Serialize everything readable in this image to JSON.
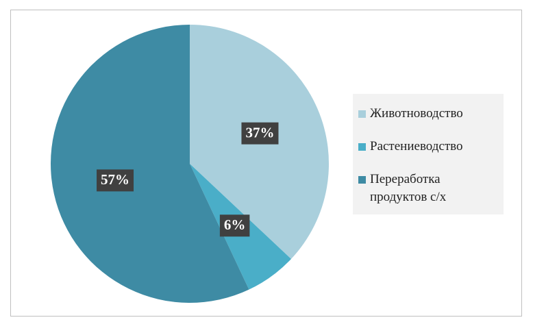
{
  "chart_data": {
    "type": "pie",
    "categories": [
      "Животноводство",
      "Растениеводство",
      "Переработка продуктов с/х"
    ],
    "values": [
      37,
      6,
      57
    ],
    "value_labels": [
      "37%",
      "6%",
      "57%"
    ],
    "colors": [
      "#a9cfdc",
      "#4aaec8",
      "#3e8ba4"
    ],
    "legend": "right"
  }
}
